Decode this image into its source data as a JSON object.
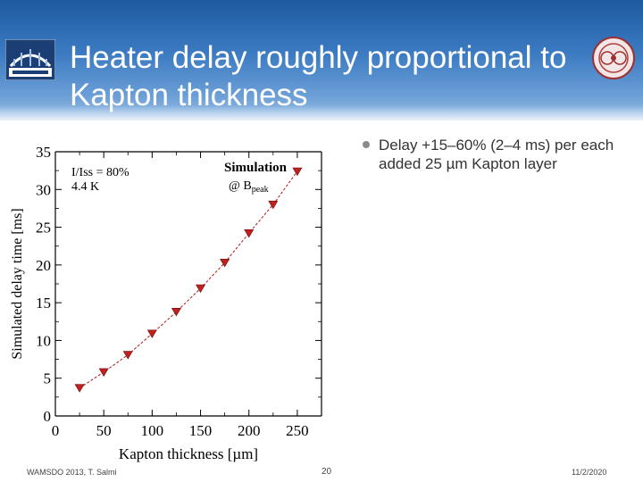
{
  "slide": {
    "title": "Heater delay roughly proportional to Kapton thickness",
    "bullets": [
      "Delay +15–60% (2–4 ms) per each added 25 µm Kapton layer"
    ],
    "footer_left": "WAMSDO 2013, T. Salmi",
    "page_number": "20",
    "date": "11/2/2020"
  },
  "colors": {
    "header": "#2f6db5",
    "marker": "#c0201e",
    "dashline": "#b01818"
  },
  "chart_data": {
    "type": "scatter",
    "title": "",
    "xlabel": "Kapton thickness [µm]",
    "ylabel": "Simulated delay time [ms]",
    "xlim": [
      0,
      275
    ],
    "ylim": [
      0,
      35
    ],
    "xticks": [
      0,
      50,
      100,
      150,
      200,
      250
    ],
    "yticks": [
      0,
      5,
      10,
      15,
      20,
      25,
      30,
      35
    ],
    "grid": false,
    "annotations": {
      "current": "I/Iss = 80%",
      "temperature": "4.4 K",
      "mode": "Simulation",
      "field_prefix": "@ B",
      "field_sub": "peak"
    },
    "series": [
      {
        "name": "Simulation",
        "marker": "down-triangle",
        "line": "dashed",
        "x": [
          25,
          50,
          75,
          100,
          125,
          150,
          175,
          200,
          225,
          250
        ],
        "y": [
          3.7,
          5.8,
          8.1,
          10.9,
          13.8,
          16.9,
          20.3,
          24.2,
          28.0,
          32.4
        ]
      }
    ]
  }
}
